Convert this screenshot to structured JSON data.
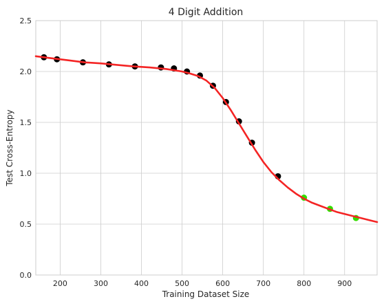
{
  "chart_data": {
    "type": "scatter",
    "title": "4 Digit Addition",
    "xlabel": "Training Dataset Size",
    "ylabel": "Test Cross-Entropy",
    "xlim": [
      140,
      980
    ],
    "ylim": [
      0.0,
      2.5
    ],
    "xticks": [
      200,
      300,
      400,
      500,
      600,
      700,
      800,
      900
    ],
    "yticks": [
      0.0,
      0.5,
      1.0,
      1.5,
      2.0,
      2.5
    ],
    "ytick_labels": [
      "0.0",
      "0.5",
      "1.0",
      "1.5",
      "2.0",
      "2.5"
    ],
    "grid": true,
    "colors": {
      "fit_line": "#f42424",
      "observed_points": "#000000",
      "predicted_points": "#33dd00",
      "grid": "#cccccc",
      "axes": "#cccccc"
    },
    "series": [
      {
        "kind": "points",
        "color_key": "observed_points",
        "x": [
          160,
          192,
          256,
          320,
          384,
          448,
          480,
          512,
          544,
          576,
          608,
          640,
          672,
          736
        ],
        "y": [
          2.14,
          2.12,
          2.09,
          2.07,
          2.05,
          2.04,
          2.03,
          2.0,
          1.96,
          1.86,
          1.7,
          1.51,
          1.3,
          0.97
        ]
      },
      {
        "kind": "points",
        "color_key": "predicted_points",
        "x": [
          800,
          864,
          928
        ],
        "y": [
          0.76,
          0.65,
          0.56
        ]
      },
      {
        "kind": "line",
        "color_key": "fit_line",
        "x": [
          140,
          180,
          220,
          260,
          300,
          340,
          380,
          420,
          460,
          500,
          520,
          540,
          560,
          580,
          600,
          620,
          640,
          660,
          680,
          700,
          720,
          740,
          760,
          780,
          800,
          820,
          840,
          860,
          880,
          900,
          920,
          940,
          960,
          980
        ],
        "y": [
          2.15,
          2.13,
          2.11,
          2.09,
          2.08,
          2.065,
          2.05,
          2.04,
          2.025,
          2.0,
          1.98,
          1.955,
          1.91,
          1.84,
          1.74,
          1.62,
          1.49,
          1.36,
          1.23,
          1.11,
          1.01,
          0.93,
          0.86,
          0.8,
          0.75,
          0.71,
          0.68,
          0.65,
          0.62,
          0.6,
          0.58,
          0.56,
          0.54,
          0.52
        ]
      }
    ]
  }
}
